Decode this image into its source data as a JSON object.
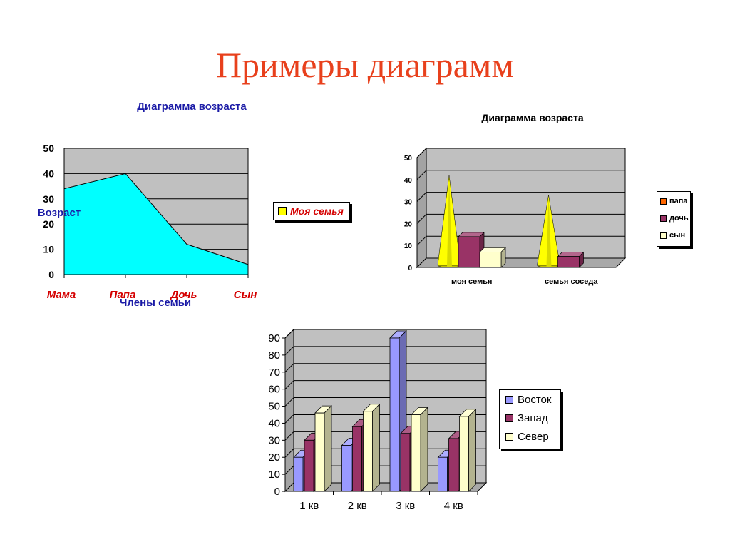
{
  "slide": {
    "title": "Примеры диаграмм"
  },
  "colors": {
    "title": "#e8401c",
    "area_fill": "#00ffff",
    "plot_background": "#c0c0c0",
    "chart1_title": "#1a1aa6",
    "chart1_category_labels": "#d40000",
    "east": "#9999ff",
    "west": "#993366",
    "north": "#ffffcc",
    "papa": "#ffff00",
    "doch": "#993366",
    "syn": "#ffffcc",
    "papa_legend": "#ff6600"
  },
  "chart_data": [
    {
      "type": "area",
      "title": "Диаграмма возраста",
      "xlabel": "Члены семьи",
      "ylabel": "Возраст",
      "categories": [
        "Мама",
        "Папа",
        "Дочь",
        "Сын"
      ],
      "series": [
        {
          "name": "Моя семья",
          "values": [
            34,
            40,
            12,
            4
          ]
        }
      ],
      "ylim": [
        0,
        50
      ],
      "yticks": [
        "0",
        "10",
        "20",
        "30",
        "40",
        "50"
      ],
      "grid": true,
      "legend_position": "right"
    },
    {
      "type": "bar",
      "subtype": "3d-cone-and-column",
      "title": "Диаграмма возраста",
      "categories": [
        "моя семья",
        "семья соседа"
      ],
      "series": [
        {
          "name": "папа",
          "values": [
            42,
            33
          ]
        },
        {
          "name": "дочь",
          "values": [
            14,
            5
          ]
        },
        {
          "name": "сын",
          "values": [
            7,
            null
          ]
        }
      ],
      "ylim": [
        0,
        50
      ],
      "yticks": [
        "0",
        "10",
        "20",
        "30",
        "40",
        "50"
      ],
      "grid": true,
      "legend_position": "right"
    },
    {
      "type": "bar",
      "subtype": "3d-column",
      "categories": [
        "1 кв",
        "2 кв",
        "3 кв",
        "4 кв"
      ],
      "series": [
        {
          "name": "Восток",
          "values": [
            20,
            27,
            90,
            20
          ]
        },
        {
          "name": "Запад",
          "values": [
            30,
            38,
            34,
            31
          ]
        },
        {
          "name": "Север",
          "values": [
            46,
            47,
            45,
            44
          ]
        }
      ],
      "ylim": [
        0,
        90
      ],
      "yticks": [
        "0",
        "10",
        "20",
        "30",
        "40",
        "50",
        "60",
        "70",
        "80",
        "90"
      ],
      "grid": true,
      "legend_position": "right"
    }
  ]
}
